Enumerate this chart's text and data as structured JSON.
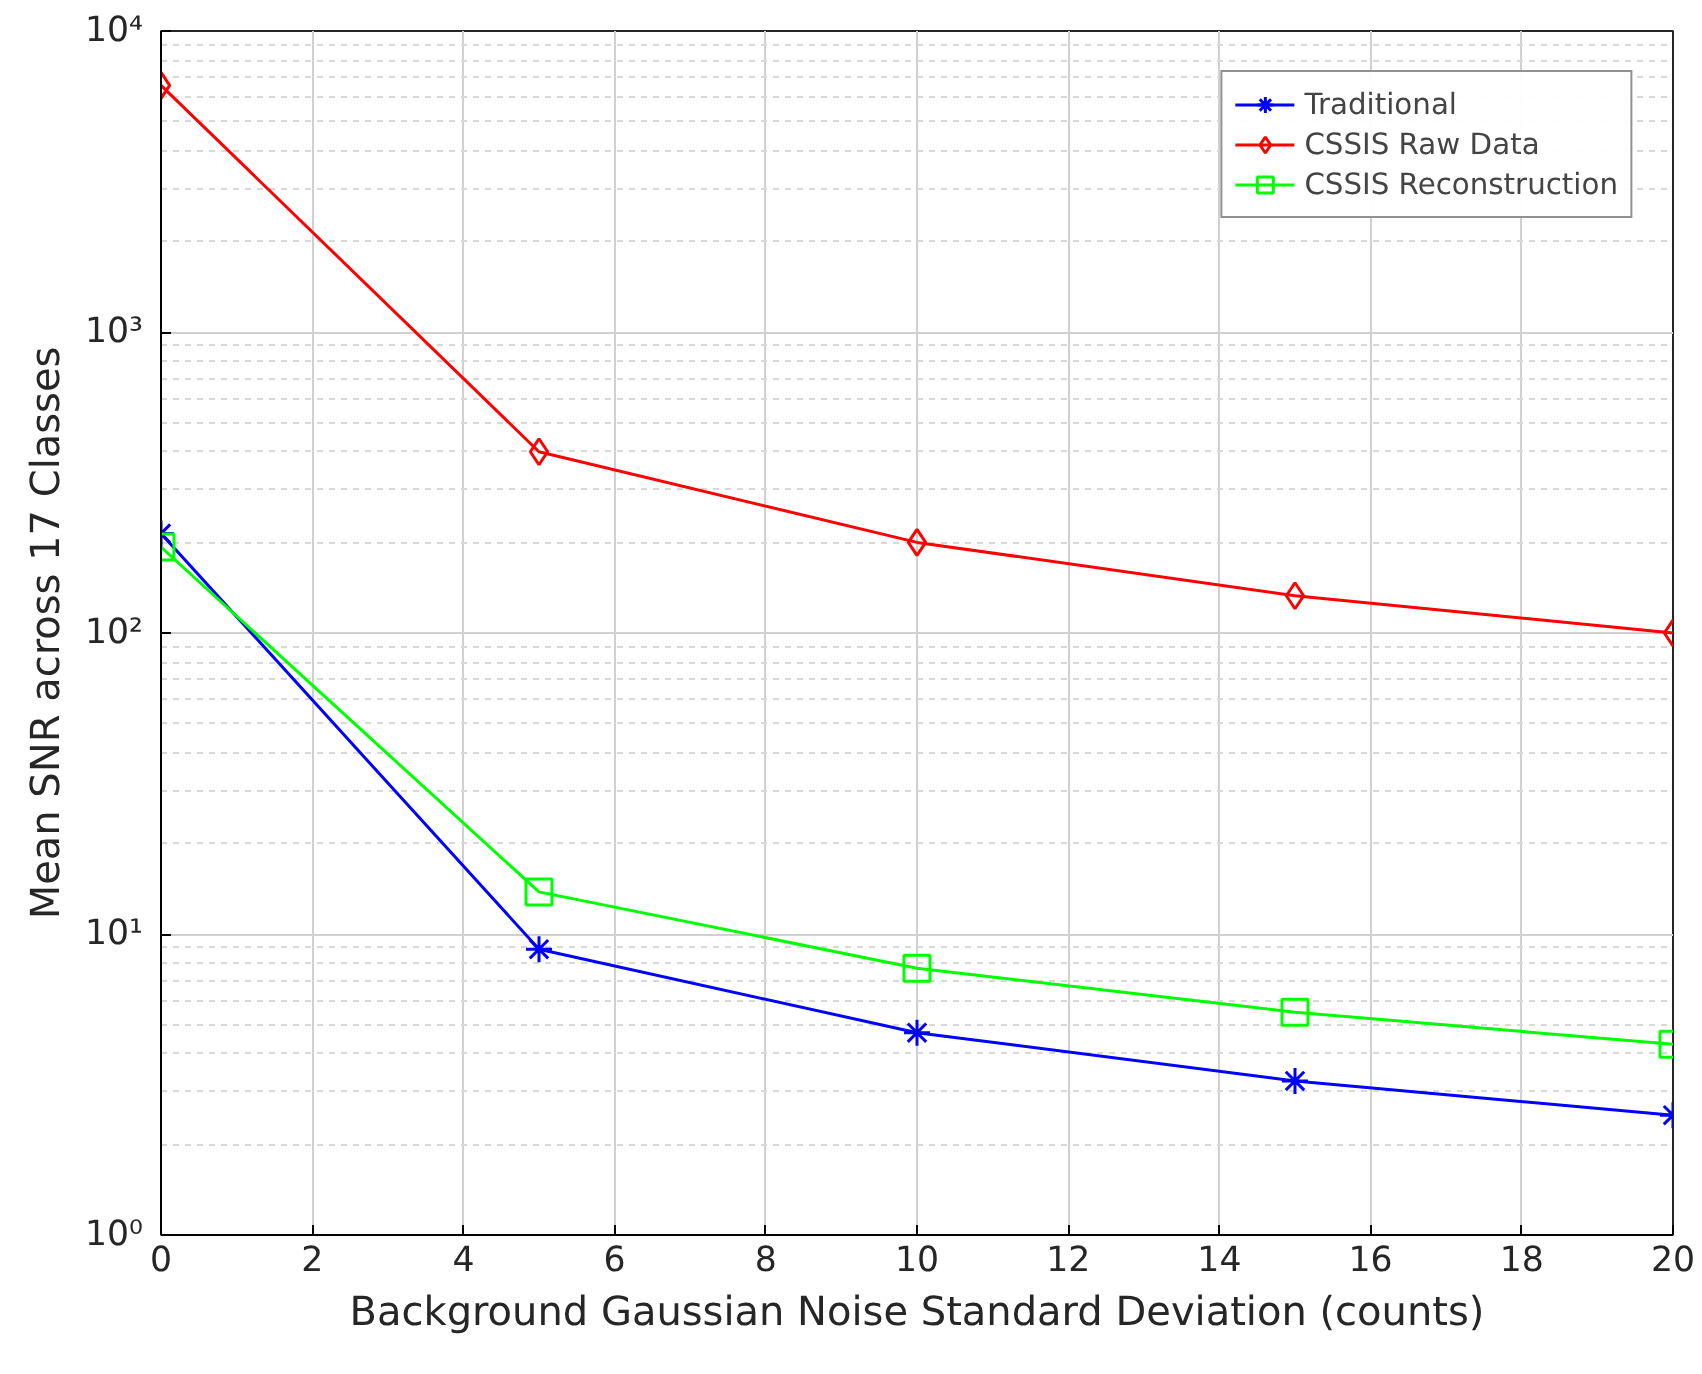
{
  "chart_data": {
    "type": "line",
    "xlabel": "Background Gaussian Noise Standard Deviation (counts)",
    "ylabel": "Mean SNR across 17 Classes",
    "x": [
      0,
      5,
      10,
      15,
      20
    ],
    "series": [
      {
        "name": "Traditional",
        "color": "#0000ff",
        "marker": "cross",
        "values": [
          214,
          8.9,
          4.7,
          3.25,
          2.5
        ]
      },
      {
        "name": "CSSIS Raw Data",
        "color": "#ff0000",
        "marker": "diamond",
        "values": [
          6600,
          400,
          200,
          133,
          100
        ]
      },
      {
        "name": "CSSIS Reconstruction",
        "color": "#00ff00",
        "marker": "square",
        "values": [
          193,
          13.8,
          7.7,
          5.5,
          4.3
        ]
      }
    ],
    "log": "y",
    "xlim": [
      0,
      20
    ],
    "xticks": [
      0,
      2,
      4,
      6,
      8,
      10,
      12,
      14,
      16,
      18,
      20
    ],
    "ylim": [
      1,
      10000
    ],
    "yticks": [
      {
        "value": 1,
        "label": "10⁰"
      },
      {
        "value": 10,
        "label": "10¹"
      },
      {
        "value": 100,
        "label": "10²"
      },
      {
        "value": 1000,
        "label": "10³"
      },
      {
        "value": 10000,
        "label": "10⁴"
      }
    ],
    "grid": true,
    "legend": "top right",
    "line_style": "solid"
  }
}
